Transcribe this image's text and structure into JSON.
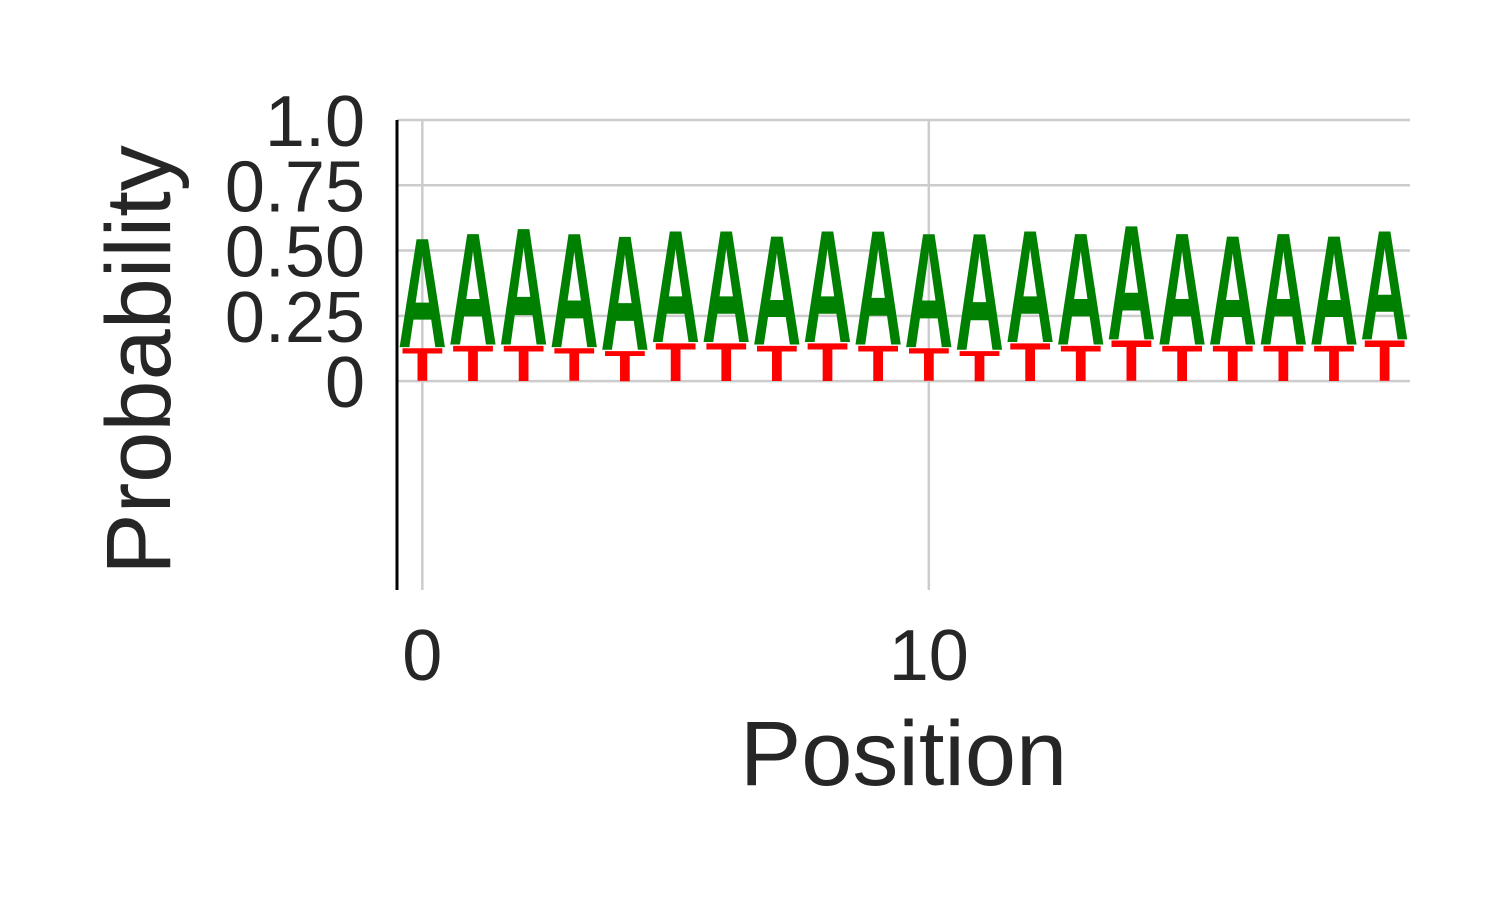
{
  "chart_data": {
    "type": "sequence-logo",
    "xlabel": "Position",
    "ylabel": "Probability",
    "xlim": [
      -0.5,
      19.5
    ],
    "ylim": [
      -0.8,
      1.0
    ],
    "x_ticks": [
      0,
      10
    ],
    "x_tick_labels": [
      "0",
      "10"
    ],
    "y_ticks": [
      0,
      0.25,
      0.5,
      0.75,
      1.0
    ],
    "y_tick_labels": [
      "0",
      "0.25",
      "0.50",
      "0.75",
      "1.0"
    ],
    "grid": true,
    "positions": [
      0,
      1,
      2,
      3,
      4,
      5,
      6,
      7,
      8,
      9,
      10,
      11,
      12,
      13,
      14,
      15,
      16,
      17,
      18,
      19
    ],
    "series": [
      {
        "name": "T",
        "color": "#ff0000",
        "values": [
          0.13,
          0.14,
          0.14,
          0.13,
          0.12,
          0.15,
          0.15,
          0.14,
          0.15,
          0.14,
          0.13,
          0.12,
          0.15,
          0.14,
          0.16,
          0.14,
          0.14,
          0.14,
          0.14,
          0.16
        ]
      },
      {
        "name": "A",
        "color": "#008000",
        "values": [
          0.43,
          0.44,
          0.46,
          0.45,
          0.45,
          0.44,
          0.44,
          0.43,
          0.44,
          0.45,
          0.45,
          0.46,
          0.44,
          0.44,
          0.45,
          0.44,
          0.43,
          0.44,
          0.43,
          0.43
        ]
      }
    ]
  }
}
